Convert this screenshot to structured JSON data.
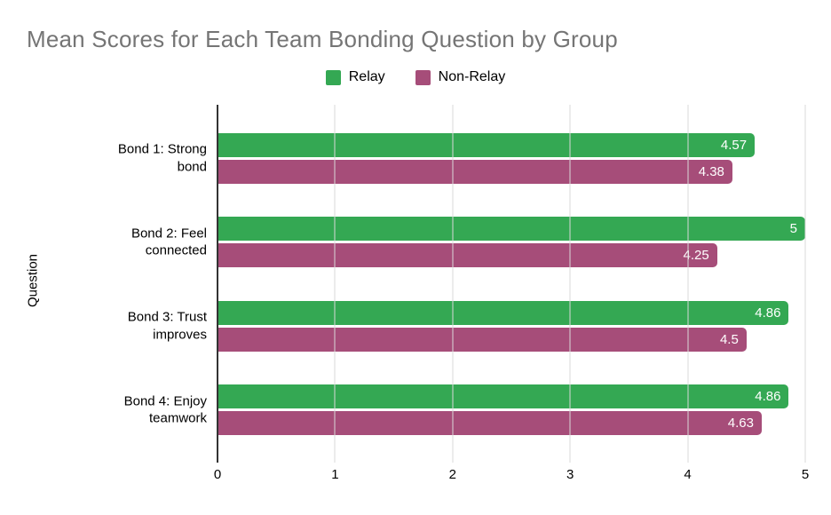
{
  "title": "Mean Scores for Each Team Bonding Question by Group",
  "colors": {
    "relay": "#34a853",
    "non_relay": "#a64d79",
    "gridline": "#d9d9d9",
    "axis_line": "#333333",
    "title_text": "#757575",
    "bar_value_text": "#ffffff"
  },
  "chart_data": {
    "type": "bar",
    "orientation": "horizontal",
    "title": "Mean Scores for Each Team Bonding Question by Group",
    "xlabel": "",
    "ylabel": "Question",
    "categories": [
      "Bond 1: Strong\nbond",
      "Bond 2: Feel\nconnected",
      "Bond 3: Trust\nimproves",
      "Bond 4: Enjoy\nteamwork"
    ],
    "series": [
      {
        "name": "Relay",
        "color": "#34a853",
        "values": [
          4.57,
          5,
          4.86,
          4.86
        ]
      },
      {
        "name": "Non-Relay",
        "color": "#a64d79",
        "values": [
          4.38,
          4.25,
          4.5,
          4.63
        ]
      }
    ],
    "xlim": [
      0,
      5
    ],
    "x_ticks": [
      0,
      1,
      2,
      3,
      4,
      5
    ],
    "grid": true,
    "bar_value_labels": true,
    "legend_position": "top"
  }
}
